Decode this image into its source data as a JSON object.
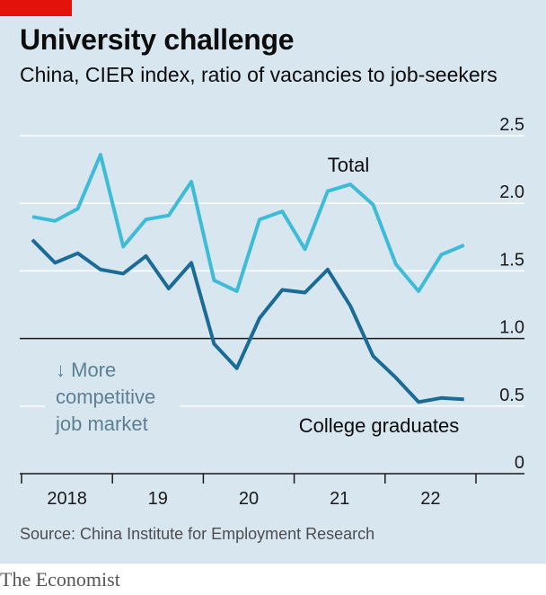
{
  "header": {
    "title": "University challenge",
    "subtitle": "China, CIER index, ratio of vacancies to job-seekers"
  },
  "footer": {
    "source": "Source: China Institute for Employment Research",
    "brand": "The Economist"
  },
  "colors": {
    "total": "#3ebbd6",
    "graduates": "#1b6b97",
    "annotation": "#5c7f93",
    "grid": "#ffffff",
    "panel": "#d8e6f0",
    "brand_red": "#e3120b"
  },
  "chart_data": {
    "type": "line",
    "title": "University challenge",
    "subtitle": "China, CIER index, ratio of vacancies to job-seekers",
    "xlabel": "",
    "ylabel": "",
    "ylim": [
      0,
      2.5
    ],
    "y_ticks": [
      "2.5",
      "2.0",
      "1.5",
      "1.0",
      "0.5",
      "0"
    ],
    "y_tick_values": [
      2.5,
      2.0,
      1.5,
      1.0,
      0.5,
      0
    ],
    "reference_line": 1.0,
    "x_categories": [
      "2018",
      "19",
      "20",
      "21",
      "22"
    ],
    "quarters_per_year": 4,
    "x_quarters": [
      0,
      1,
      2,
      3,
      4,
      5,
      6,
      7,
      8,
      9,
      10,
      11,
      12,
      13,
      14,
      15,
      16,
      17,
      18,
      19
    ],
    "series": [
      {
        "name": "Total",
        "label": "Total",
        "values": [
          1.9,
          1.87,
          1.96,
          2.36,
          1.68,
          1.88,
          1.91,
          2.16,
          1.43,
          1.35,
          1.88,
          1.94,
          1.66,
          2.09,
          2.14,
          1.99,
          1.55,
          1.35,
          1.62,
          1.69
        ]
      },
      {
        "name": "College graduates",
        "label": "College graduates",
        "values": [
          1.73,
          1.56,
          1.63,
          1.51,
          1.48,
          1.61,
          1.37,
          1.56,
          0.96,
          0.78,
          1.15,
          1.36,
          1.34,
          1.51,
          1.24,
          0.87,
          0.71,
          0.53,
          0.56,
          0.55
        ]
      }
    ],
    "annotation": [
      "↓ More",
      "competitive",
      "job market"
    ]
  }
}
